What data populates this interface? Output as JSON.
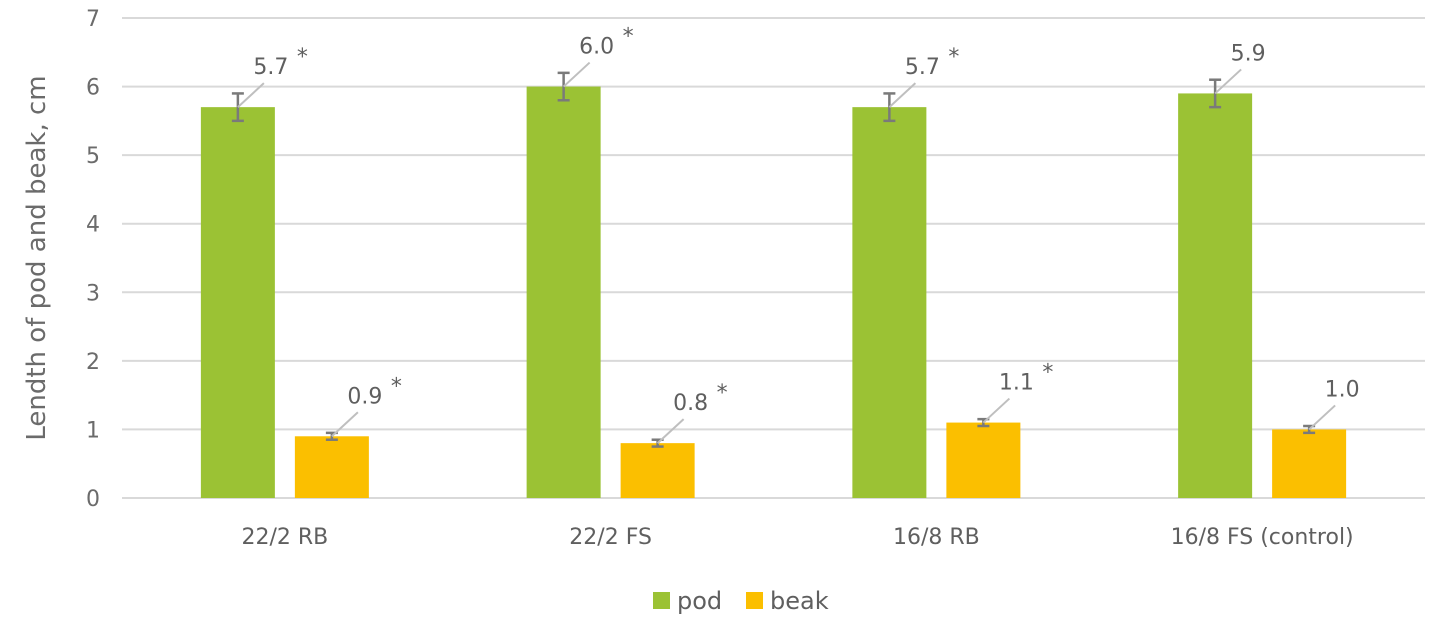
{
  "chart_data": {
    "type": "bar",
    "title": "",
    "xlabel": "",
    "ylabel": "Lendth of pod and beak, cm",
    "ylim": [
      0,
      7
    ],
    "yticks": [
      "0",
      "1",
      "2",
      "3",
      "4",
      "5",
      "6",
      "7"
    ],
    "grid": true,
    "legend_position": "bottom",
    "categories": [
      "22/2 RB",
      "22/2 FS",
      "16/8 RB",
      "16/8 FS (control)"
    ],
    "series": [
      {
        "name": "pod",
        "color": "#9bc234",
        "values": [
          5.7,
          6.0,
          5.7,
          5.9
        ],
        "errors": [
          0.2,
          0.2,
          0.2,
          0.2
        ],
        "labels": [
          "5.7",
          "6.0",
          "5.7",
          "5.9"
        ],
        "marks": [
          "*",
          "*",
          "*",
          ""
        ]
      },
      {
        "name": "beak",
        "color": "#fbbf00",
        "values": [
          0.9,
          0.8,
          1.1,
          1.0
        ],
        "errors": [
          0.05,
          0.05,
          0.05,
          0.05
        ],
        "labels": [
          "0.9",
          "0.8",
          "1.1",
          "1.0"
        ],
        "marks": [
          "*",
          "*",
          "*",
          ""
        ]
      }
    ]
  }
}
